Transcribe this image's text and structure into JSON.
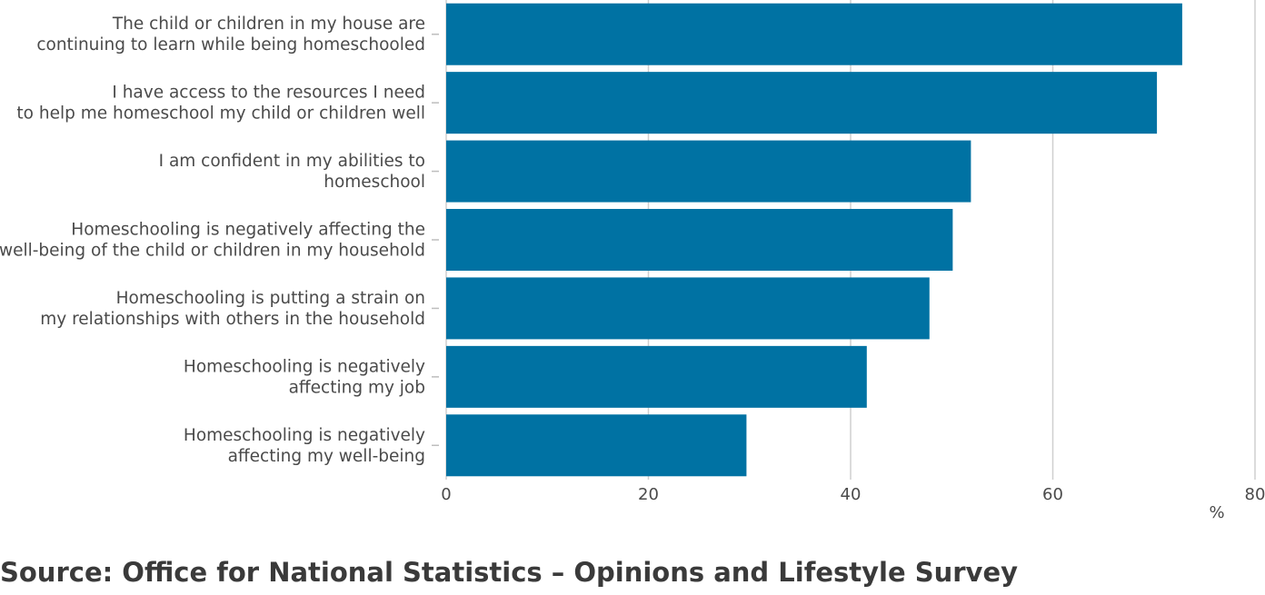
{
  "chart_data": {
    "type": "bar",
    "orientation": "horizontal",
    "categories": [
      [
        "The child or children in my house are",
        "continuing to learn while being homeschooled"
      ],
      [
        "I have access to the resources I need",
        "to help me homeschool my child or children well"
      ],
      [
        "I am confident in my abilities to",
        "homeschool"
      ],
      [
        "Homeschooling is negatively affecting the",
        "well-being of the child or children in my household"
      ],
      [
        "Homeschooling is putting a strain on",
        "my relationships with others in the household"
      ],
      [
        "Homeschooling is negatively",
        "affecting my job"
      ],
      [
        "Homeschooling is negatively",
        "affecting my well-being"
      ]
    ],
    "values": [
      72.8,
      70.3,
      51.9,
      50.1,
      47.8,
      41.6,
      29.7
    ],
    "xlim": [
      0,
      80
    ],
    "xticks": [
      "0",
      "20",
      "40",
      "60",
      "80"
    ],
    "xunit": "%",
    "grid": true,
    "bar_color": "#0072a3"
  },
  "source": "Source: Office for National Statistics – Opinions and Lifestyle Survey"
}
